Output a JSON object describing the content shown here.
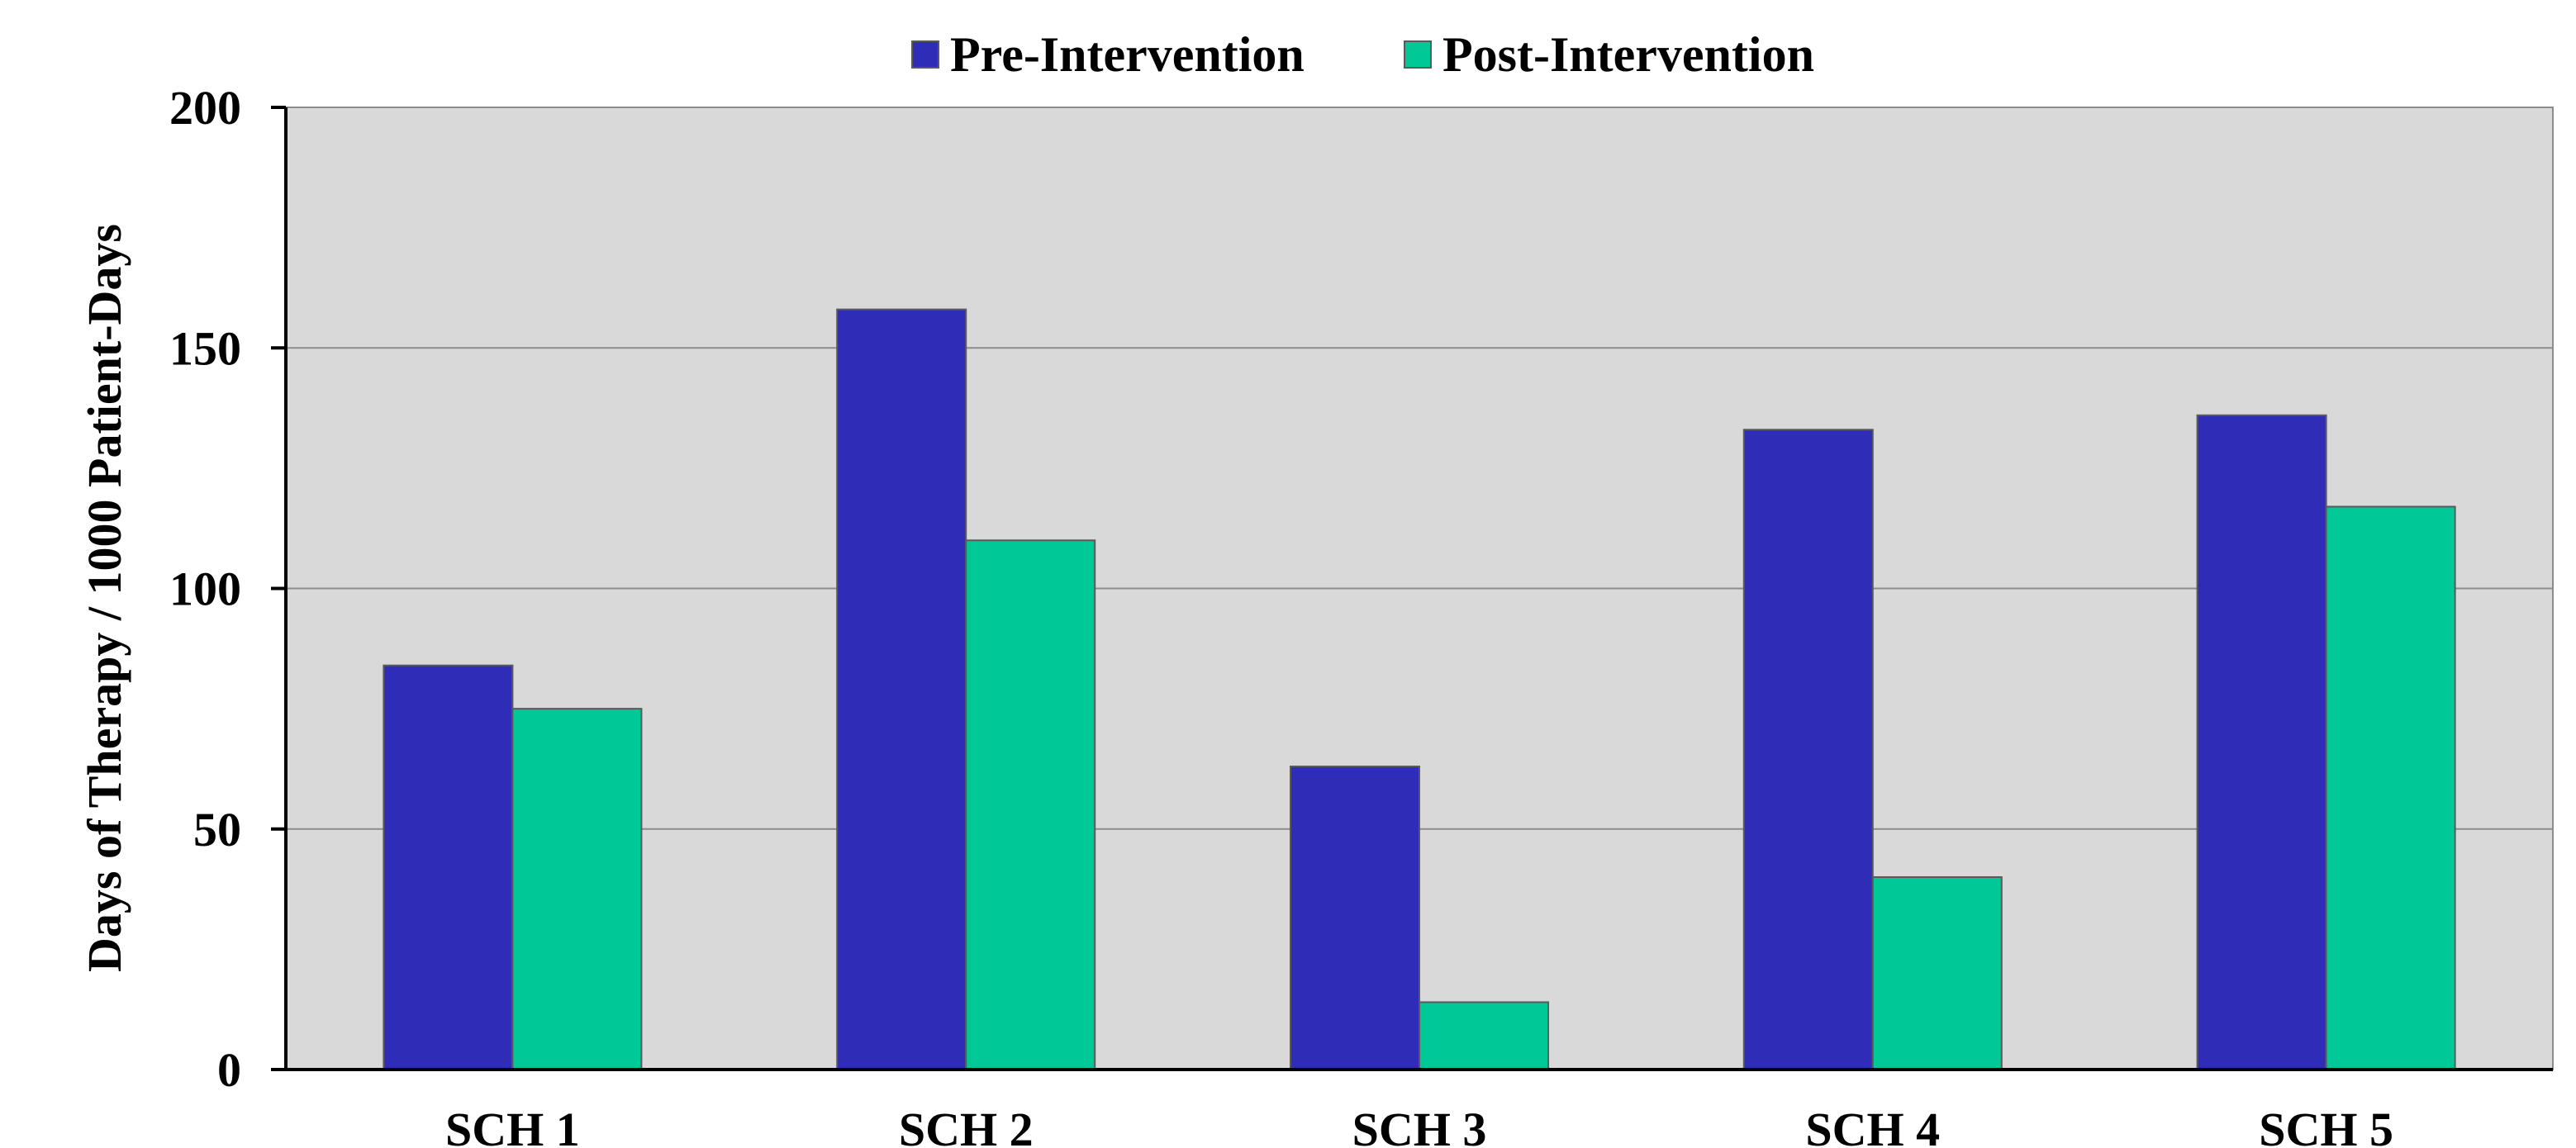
{
  "chart_data": {
    "type": "bar",
    "title": "",
    "xlabel": "",
    "ylabel": "Days of Therapy / 1000 Patient-Days",
    "categories": [
      "SCH 1",
      "SCH 2",
      "SCH 3",
      "SCH 4",
      "SCH 5"
    ],
    "series": [
      {
        "name": "Pre-Intervention",
        "color": "#2f2db8",
        "values": [
          84,
          158,
          63,
          133,
          136
        ]
      },
      {
        "name": "Post-Intervention",
        "color": "#00c896",
        "values": [
          75,
          110,
          14,
          40,
          117
        ]
      }
    ],
    "ylim": [
      0,
      200
    ],
    "yticks": [
      0,
      50,
      100,
      150,
      200
    ],
    "ytick_labels": [
      "0",
      "50",
      "100",
      "150",
      "200"
    ],
    "grid": true,
    "legend": "top-center",
    "plot_background": "#d9d9d9",
    "gridline_color": "#8c8c8c"
  }
}
